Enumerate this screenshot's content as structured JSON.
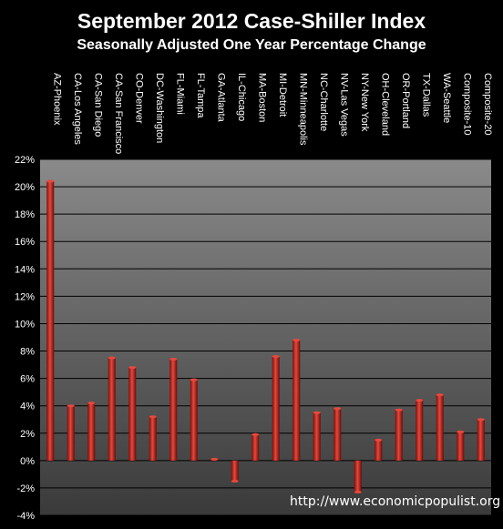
{
  "chart_data": {
    "type": "bar",
    "title": "September 2012 Case-Shiller Index",
    "subtitle": "Seasonally Adjusted One Year Percentage Change",
    "categories": [
      "AZ-Phoenix",
      "CA-Los Angeles",
      "CA-San Diego",
      "CA-San Francisco",
      "CO-Denver",
      "DC-Washington",
      "FL-Miami",
      "FL-Tampa",
      "GA-Atlanta",
      "IL-Chicago",
      "MA-Boston",
      "MI-Detroit",
      "MN-Minneapolis",
      "NC-Charlotte",
      "NV-Las Vegas",
      "NY-New York",
      "OH-Cleveland",
      "OR-Portland",
      "TX-Dallas",
      "WA-Seattle",
      "Composite-10",
      "Composite-20"
    ],
    "values": [
      20.4,
      4.0,
      4.2,
      7.5,
      6.8,
      3.2,
      7.4,
      5.9,
      0.1,
      -1.5,
      1.9,
      7.6,
      8.8,
      3.5,
      3.8,
      -2.3,
      1.5,
      3.7,
      4.4,
      4.8,
      2.1,
      3.0
    ],
    "ylim": [
      -4,
      22
    ],
    "ytick_step": 2,
    "ytick_suffix": "%",
    "grid": true,
    "bar_color": "#c8281e",
    "plot_background": "#8c8c8c",
    "watermark": "http://www.economicpopulist.org"
  }
}
